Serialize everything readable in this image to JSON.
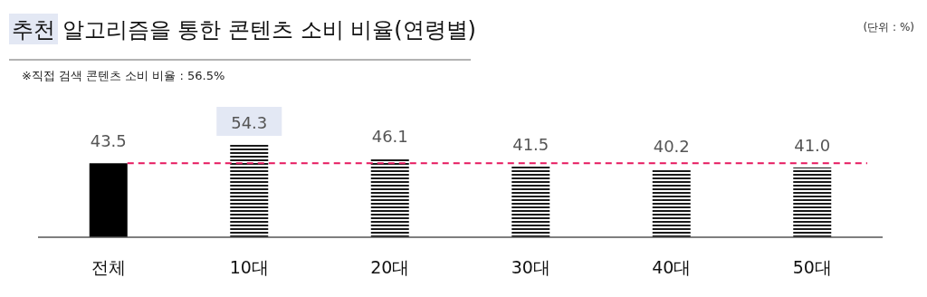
{
  "chart_data": {
    "type": "bar",
    "title": "추천 알고리즘을 통한 콘텐츠 소비 비율(연령별)",
    "annotations": [
      "(단위 : %)",
      "※직접 검색 콘텐츠 소비 비율 : 56.5%"
    ],
    "categories": [
      "전체",
      "10대",
      "20대",
      "30대",
      "40대",
      "50대"
    ],
    "values": [
      43.5,
      54.3,
      46.1,
      41.5,
      40.2,
      41.0
    ],
    "colors": [
      "#000000",
      "#1a1a1a",
      "#1a1a1a",
      "#1a1a1a",
      "#1a1a1a",
      "#1a1a1a"
    ],
    "value_labels": [
      "43.5",
      "54.3",
      "46.1",
      "41.5",
      "40.2",
      "41.0"
    ],
    "ref_lines": [
      {
        "axis": "y",
        "value": 43.5,
        "color": "#e6195f",
        "line_style": "dashed"
      }
    ]
  }
}
